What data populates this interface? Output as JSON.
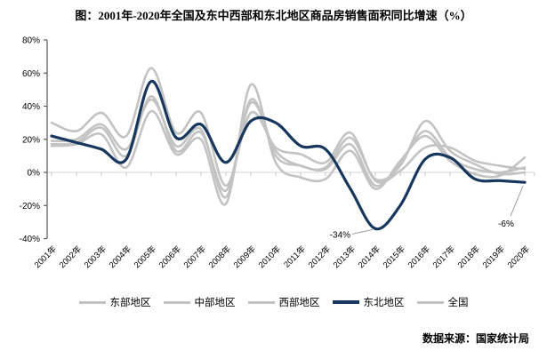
{
  "title": "图：2001年-2020年全国及东中西部和东北地区商品房销售面积同比增速（%）",
  "source": "数据来源：国家统计局",
  "colors": {
    "gray_line": "#c3c3c3",
    "navy_line": "#17375e",
    "axis": "#595959",
    "zero_line": "#d6d6d6",
    "category_tick": "#c3c3c3",
    "leader_line": "#a0a0a0",
    "text": "#000000"
  },
  "chart_data": {
    "type": "line",
    "title": "图：2001年-2020年全国及东中西部和东北地区商品房销售面积同比增速（%）",
    "x": [
      "2001年",
      "2002年",
      "2003年",
      "2004年",
      "2005年",
      "2006年",
      "2007年",
      "2008年",
      "2009年",
      "2010年",
      "2011年",
      "2012年",
      "2013年",
      "2014年",
      "2015年",
      "2016年",
      "2017年",
      "2018年",
      "2019年",
      "2020年"
    ],
    "ylabel": "",
    "xlabel": "",
    "ylim": [
      -40,
      80
    ],
    "yticks": [
      {
        "value": 80,
        "label": "80%"
      },
      {
        "value": 60,
        "label": "60%"
      },
      {
        "value": 40,
        "label": "40%"
      },
      {
        "value": 20,
        "label": "20%"
      },
      {
        "value": 0,
        "label": "0%"
      },
      {
        "value": -20,
        "label": "-20%"
      },
      {
        "value": -40,
        "label": "-40%"
      }
    ],
    "grid": false,
    "legend_position": "bottom",
    "series": [
      {
        "key": "east",
        "name": "东部地区",
        "color": "#c3c3c3",
        "width": 2.6,
        "values": [
          16,
          17,
          23,
          3,
          37,
          11,
          20,
          -19,
          53,
          6,
          -3,
          -4,
          13,
          -10,
          7,
          22,
          7,
          -1,
          -2,
          9
        ]
      },
      {
        "key": "central",
        "name": "中部地区",
        "color": "#c3c3c3",
        "width": 2.6,
        "values": [
          17,
          18,
          27,
          10,
          46,
          13,
          24,
          -11,
          42,
          13,
          4,
          3,
          21,
          -4,
          4,
          31,
          13,
          5,
          -1,
          0
        ]
      },
      {
        "key": "west",
        "name": "西部地区",
        "color": "#c3c3c3",
        "width": 2.6,
        "values": [
          30,
          25,
          36,
          22,
          63,
          24,
          36,
          -8,
          36,
          15,
          11,
          6,
          24,
          -5,
          1,
          15,
          15,
          7,
          4,
          2
        ]
      },
      {
        "key": "northeast",
        "name": "东北地区",
        "color": "#17375e",
        "width": 3.2,
        "values": [
          22,
          18,
          14,
          8,
          55,
          21,
          29,
          6,
          31,
          30,
          16,
          14,
          -10,
          -34,
          -20,
          8,
          9,
          -4,
          -5,
          -6
        ]
      },
      {
        "key": "national",
        "name": "全国",
        "color": "#c3c3c3",
        "width": 2.6,
        "values": [
          19,
          20,
          29,
          14,
          44,
          16,
          26,
          -15,
          44,
          10,
          4,
          2,
          17,
          -8,
          6,
          25,
          9,
          2,
          0,
          3
        ]
      }
    ],
    "annotations": [
      {
        "text": "-34%",
        "series": "northeast",
        "x_index": 13,
        "value": -34
      },
      {
        "text": "-6%",
        "series": "northeast",
        "x_index": 19,
        "value": -6
      }
    ]
  }
}
